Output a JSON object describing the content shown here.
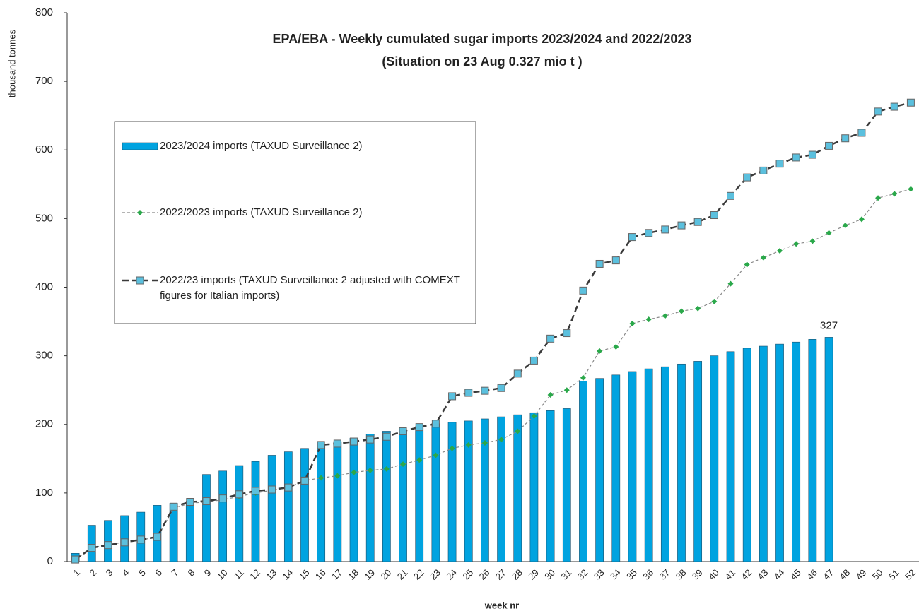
{
  "chart_data": {
    "type": "bar",
    "title": "EPA/EBA  -  Weekly cumulated sugar imports 2023/2024 and 2022/2023",
    "subtitle": "(Situation on 23 Aug 0.327 mio t )",
    "y_label": "thousand tonnes",
    "x_label": "week nr",
    "categories": [
      "1",
      "2",
      "3",
      "4",
      "5",
      "6",
      "7",
      "8",
      "9",
      "10",
      "11",
      "12",
      "13",
      "14",
      "15",
      "16",
      "17",
      "18",
      "19",
      "20",
      "21",
      "22",
      "23",
      "24",
      "25",
      "26",
      "27",
      "28",
      "29",
      "30",
      "31",
      "32",
      "33",
      "34",
      "35",
      "36",
      "37",
      "38",
      "39",
      "40",
      "41",
      "42",
      "43",
      "44",
      "45",
      "46",
      "47",
      "48",
      "49",
      "50",
      "51",
      "52"
    ],
    "series": [
      {
        "name": "2023/2024 imports (TAXUD Surveillance 2)",
        "type": "bar",
        "color": "#00a3e0",
        "values": [
          12,
          53,
          60,
          67,
          72,
          82,
          85,
          88,
          127,
          132,
          140,
          146,
          155,
          160,
          165,
          170,
          175,
          180,
          186,
          190,
          192,
          197,
          201,
          203,
          205,
          208,
          211,
          214,
          217,
          220,
          223,
          263,
          267,
          272,
          277,
          281,
          284,
          288,
          292,
          300,
          306,
          311,
          314,
          317,
          320,
          324,
          327,
          null,
          null,
          null,
          null,
          null
        ],
        "value_labels": [
          null,
          null,
          null,
          null,
          null,
          null,
          null,
          null,
          null,
          null,
          null,
          null,
          null,
          null,
          null,
          null,
          null,
          null,
          null,
          null,
          null,
          null,
          null,
          null,
          null,
          null,
          null,
          null,
          null,
          null,
          null,
          null,
          null,
          null,
          null,
          null,
          null,
          null,
          null,
          null,
          null,
          null,
          null,
          null,
          null,
          null,
          "327",
          null,
          null,
          null,
          null,
          null
        ]
      },
      {
        "name": "2022/2023 imports (TAXUD Surveillance 2)",
        "type": "line",
        "color": "#2aa84a",
        "values": [
          3,
          20,
          25,
          28,
          32,
          35,
          78,
          85,
          87,
          90,
          95,
          100,
          104,
          108,
          118,
          122,
          125,
          130,
          133,
          135,
          142,
          148,
          155,
          165,
          170,
          173,
          178,
          190,
          212,
          243,
          250,
          268,
          307,
          313,
          347,
          353,
          358,
          365,
          369,
          379,
          405,
          433,
          443,
          453,
          463,
          467,
          479,
          490,
          499,
          530,
          536,
          543
        ]
      },
      {
        "name": "2022/23 imports (TAXUD Surveillance 2 adjusted with COMEXT figures for Italian imports)",
        "type": "line",
        "color": "#5bc0de",
        "values": [
          3,
          20,
          24,
          28,
          32,
          36,
          80,
          87,
          88,
          92,
          98,
          103,
          105,
          108,
          118,
          170,
          172,
          175,
          178,
          182,
          190,
          196,
          201,
          241,
          246,
          249,
          253,
          274,
          293,
          325,
          333,
          395,
          434,
          439,
          473,
          479,
          484,
          490,
          495,
          505,
          533,
          560,
          570,
          580,
          589,
          593,
          606,
          617,
          625,
          656,
          663,
          669
        ]
      }
    ],
    "ylim": [
      0,
      800
    ],
    "yticks": [
      0,
      100,
      200,
      300,
      400,
      500,
      600,
      700,
      800
    ],
    "grid": false
  }
}
